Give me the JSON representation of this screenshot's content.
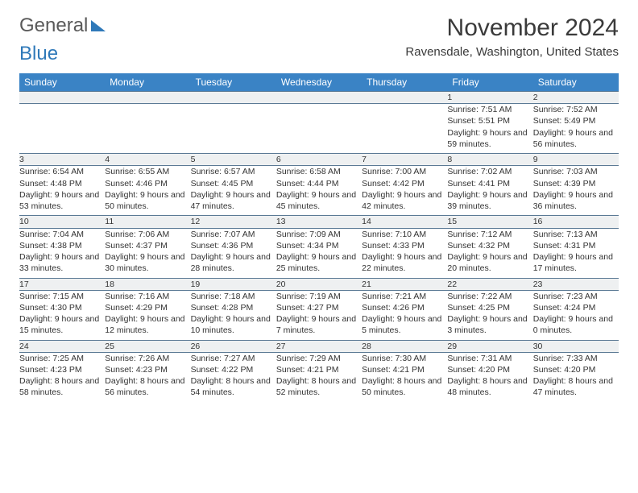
{
  "brand": {
    "word1": "General",
    "word2": "Blue"
  },
  "title": "November 2024",
  "location": "Ravensdale, Washington, United States",
  "colors": {
    "header_bg": "#3a83c5",
    "header_text": "#ffffff",
    "daynum_bg": "#eef0f1",
    "row_border": "#5b7a95",
    "brand_blue": "#2f79b9",
    "text": "#333333",
    "background": "#ffffff"
  },
  "typography": {
    "body_pt": 10.5,
    "daynum_pt": 12,
    "header_pt": 12,
    "title_pt": 30,
    "location_pt": 15
  },
  "columns": [
    "Sunday",
    "Monday",
    "Tuesday",
    "Wednesday",
    "Thursday",
    "Friday",
    "Saturday"
  ],
  "weeks": [
    [
      null,
      null,
      null,
      null,
      null,
      {
        "n": "1",
        "sr": "7:51 AM",
        "ss": "5:51 PM",
        "dl": "9 hours and 59 minutes."
      },
      {
        "n": "2",
        "sr": "7:52 AM",
        "ss": "5:49 PM",
        "dl": "9 hours and 56 minutes."
      }
    ],
    [
      {
        "n": "3",
        "sr": "6:54 AM",
        "ss": "4:48 PM",
        "dl": "9 hours and 53 minutes."
      },
      {
        "n": "4",
        "sr": "6:55 AM",
        "ss": "4:46 PM",
        "dl": "9 hours and 50 minutes."
      },
      {
        "n": "5",
        "sr": "6:57 AM",
        "ss": "4:45 PM",
        "dl": "9 hours and 47 minutes."
      },
      {
        "n": "6",
        "sr": "6:58 AM",
        "ss": "4:44 PM",
        "dl": "9 hours and 45 minutes."
      },
      {
        "n": "7",
        "sr": "7:00 AM",
        "ss": "4:42 PM",
        "dl": "9 hours and 42 minutes."
      },
      {
        "n": "8",
        "sr": "7:02 AM",
        "ss": "4:41 PM",
        "dl": "9 hours and 39 minutes."
      },
      {
        "n": "9",
        "sr": "7:03 AM",
        "ss": "4:39 PM",
        "dl": "9 hours and 36 minutes."
      }
    ],
    [
      {
        "n": "10",
        "sr": "7:04 AM",
        "ss": "4:38 PM",
        "dl": "9 hours and 33 minutes."
      },
      {
        "n": "11",
        "sr": "7:06 AM",
        "ss": "4:37 PM",
        "dl": "9 hours and 30 minutes."
      },
      {
        "n": "12",
        "sr": "7:07 AM",
        "ss": "4:36 PM",
        "dl": "9 hours and 28 minutes."
      },
      {
        "n": "13",
        "sr": "7:09 AM",
        "ss": "4:34 PM",
        "dl": "9 hours and 25 minutes."
      },
      {
        "n": "14",
        "sr": "7:10 AM",
        "ss": "4:33 PM",
        "dl": "9 hours and 22 minutes."
      },
      {
        "n": "15",
        "sr": "7:12 AM",
        "ss": "4:32 PM",
        "dl": "9 hours and 20 minutes."
      },
      {
        "n": "16",
        "sr": "7:13 AM",
        "ss": "4:31 PM",
        "dl": "9 hours and 17 minutes."
      }
    ],
    [
      {
        "n": "17",
        "sr": "7:15 AM",
        "ss": "4:30 PM",
        "dl": "9 hours and 15 minutes."
      },
      {
        "n": "18",
        "sr": "7:16 AM",
        "ss": "4:29 PM",
        "dl": "9 hours and 12 minutes."
      },
      {
        "n": "19",
        "sr": "7:18 AM",
        "ss": "4:28 PM",
        "dl": "9 hours and 10 minutes."
      },
      {
        "n": "20",
        "sr": "7:19 AM",
        "ss": "4:27 PM",
        "dl": "9 hours and 7 minutes."
      },
      {
        "n": "21",
        "sr": "7:21 AM",
        "ss": "4:26 PM",
        "dl": "9 hours and 5 minutes."
      },
      {
        "n": "22",
        "sr": "7:22 AM",
        "ss": "4:25 PM",
        "dl": "9 hours and 3 minutes."
      },
      {
        "n": "23",
        "sr": "7:23 AM",
        "ss": "4:24 PM",
        "dl": "9 hours and 0 minutes."
      }
    ],
    [
      {
        "n": "24",
        "sr": "7:25 AM",
        "ss": "4:23 PM",
        "dl": "8 hours and 58 minutes."
      },
      {
        "n": "25",
        "sr": "7:26 AM",
        "ss": "4:23 PM",
        "dl": "8 hours and 56 minutes."
      },
      {
        "n": "26",
        "sr": "7:27 AM",
        "ss": "4:22 PM",
        "dl": "8 hours and 54 minutes."
      },
      {
        "n": "27",
        "sr": "7:29 AM",
        "ss": "4:21 PM",
        "dl": "8 hours and 52 minutes."
      },
      {
        "n": "28",
        "sr": "7:30 AM",
        "ss": "4:21 PM",
        "dl": "8 hours and 50 minutes."
      },
      {
        "n": "29",
        "sr": "7:31 AM",
        "ss": "4:20 PM",
        "dl": "8 hours and 48 minutes."
      },
      {
        "n": "30",
        "sr": "7:33 AM",
        "ss": "4:20 PM",
        "dl": "8 hours and 47 minutes."
      }
    ]
  ],
  "labels": {
    "sunrise": "Sunrise: ",
    "sunset": "Sunset: ",
    "daylight": "Daylight: "
  }
}
